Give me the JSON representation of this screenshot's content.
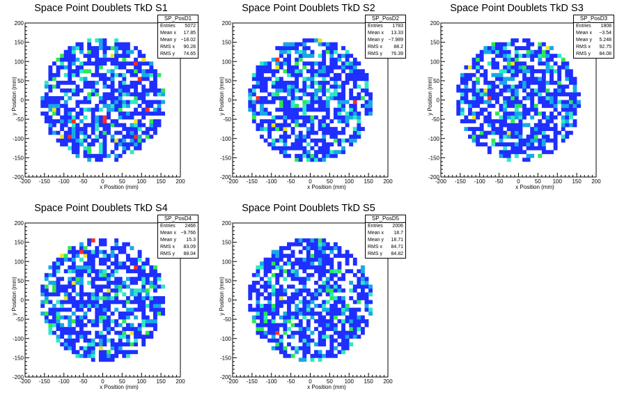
{
  "palette": [
    "#ffffff",
    "#1e2fff",
    "#19a8e6",
    "#2de8c8",
    "#2ee850",
    "#e8e820",
    "#ff2e1e"
  ],
  "chart_data": [
    {
      "type": "heatmap",
      "title": "Space Point Doublets TkD S1",
      "xlabel": "x Position (mm)",
      "ylabel": "y Position (mm)",
      "xlim": [
        -200,
        200
      ],
      "ylim": [
        -200,
        200
      ],
      "xticks": [
        -200,
        -150,
        -100,
        -50,
        0,
        50,
        100,
        150,
        200
      ],
      "yticks": [
        -200,
        -150,
        -100,
        -50,
        0,
        50,
        100,
        150,
        200
      ],
      "bin_width": 10,
      "radius": 160,
      "stats": {
        "name": "SP_PosD1",
        "rows": [
          [
            "Entries",
            "5072"
          ],
          [
            "Mean x",
            "17.85"
          ],
          [
            "Mean y",
            "−18.02"
          ],
          [
            "RMS x",
            "90.28"
          ],
          [
            "RMS y",
            "74.65"
          ]
        ]
      }
    },
    {
      "type": "heatmap",
      "title": "Space Point Doublets TkD S2",
      "xlabel": "x Position (mm)",
      "ylabel": "y Position (mm)",
      "xlim": [
        -200,
        200
      ],
      "ylim": [
        -200,
        200
      ],
      "xticks": [
        -200,
        -150,
        -100,
        -50,
        0,
        50,
        100,
        150,
        200
      ],
      "yticks": [
        -200,
        -150,
        -100,
        -50,
        0,
        50,
        100,
        150,
        200
      ],
      "bin_width": 10,
      "radius": 160,
      "stats": {
        "name": "SP_PosD2",
        "rows": [
          [
            "Entries",
            "1783"
          ],
          [
            "Mean x",
            "13.33"
          ],
          [
            "Mean y",
            "−7.989"
          ],
          [
            "RMS x",
            "88.2"
          ],
          [
            "RMS y",
            "76.39"
          ]
        ]
      }
    },
    {
      "type": "heatmap",
      "title": "Space Point Doublets TkD S3",
      "xlabel": "x Position (mm)",
      "ylabel": "y Position (mm)",
      "xlim": [
        -200,
        200
      ],
      "ylim": [
        -200,
        200
      ],
      "xticks": [
        -200,
        -150,
        -100,
        -50,
        0,
        50,
        100,
        150,
        200
      ],
      "yticks": [
        -200,
        -150,
        -100,
        -50,
        0,
        50,
        100,
        150,
        200
      ],
      "bin_width": 10,
      "radius": 160,
      "stats": {
        "name": "SP_PosD3",
        "rows": [
          [
            "Entries",
            "1808"
          ],
          [
            "Mean x",
            "−3.54"
          ],
          [
            "Mean y",
            "5.248"
          ],
          [
            "RMS x",
            "92.75"
          ],
          [
            "RMS y",
            "84.08"
          ]
        ]
      }
    },
    {
      "type": "heatmap",
      "title": "Space Point Doublets TkD S4",
      "xlabel": "x Position (mm)",
      "ylabel": "y Position (mm)",
      "xlim": [
        -200,
        200
      ],
      "ylim": [
        -200,
        200
      ],
      "xticks": [
        -200,
        -150,
        -100,
        -50,
        0,
        50,
        100,
        150,
        200
      ],
      "yticks": [
        -200,
        -150,
        -100,
        -50,
        0,
        50,
        100,
        150,
        200
      ],
      "bin_width": 10,
      "radius": 160,
      "stats": {
        "name": "SP_PosD4",
        "rows": [
          [
            "Entries",
            "2466"
          ],
          [
            "Mean x",
            "−9.766"
          ],
          [
            "Mean y",
            "15.3"
          ],
          [
            "RMS x",
            "83.09"
          ],
          [
            "RMS y",
            "88.04"
          ]
        ]
      }
    },
    {
      "type": "heatmap",
      "title": "Space Point Doublets TkD S5",
      "xlabel": "x Position (mm)",
      "ylabel": "y Position (mm)",
      "xlim": [
        -200,
        200
      ],
      "ylim": [
        -200,
        200
      ],
      "xticks": [
        -200,
        -150,
        -100,
        -50,
        0,
        50,
        100,
        150,
        200
      ],
      "yticks": [
        -200,
        -150,
        -100,
        -50,
        0,
        50,
        100,
        150,
        200
      ],
      "bin_width": 10,
      "radius": 160,
      "stats": {
        "name": "SP_PosD5",
        "rows": [
          [
            "Entries",
            "2006"
          ],
          [
            "Mean x",
            "18.7"
          ],
          [
            "Mean y",
            "18.71"
          ],
          [
            "RMS x",
            "84.71"
          ],
          [
            "RMS y",
            "84.82"
          ]
        ]
      }
    }
  ]
}
